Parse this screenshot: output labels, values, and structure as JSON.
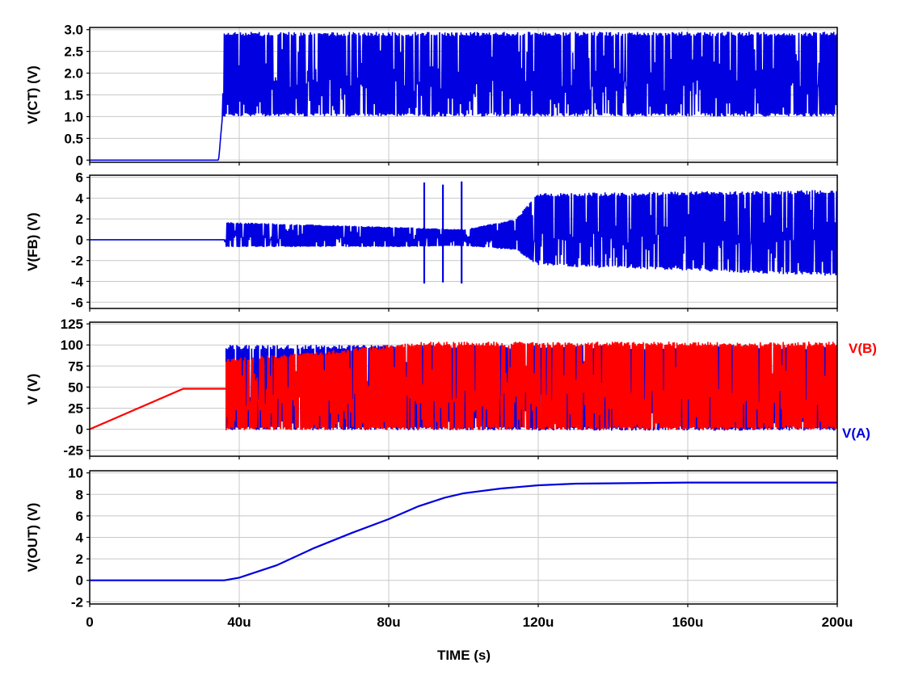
{
  "chart_data": {
    "type": "line",
    "xlabel": "TIME  (s)",
    "xlim": [
      0,
      200
    ],
    "x_tick_labels": [
      "0",
      "40u",
      "80u",
      "120u",
      "160u",
      "200u"
    ],
    "x_tick_values": [
      0,
      40,
      80,
      120,
      160,
      200
    ],
    "grid": true,
    "panels": [
      {
        "id": "ct",
        "ylabel": "V(CT)  (V)",
        "ylim": [
          -0.05,
          3.05
        ],
        "y_tick_labels": [
          "3.0",
          "2.5",
          "2.0",
          "1.5",
          "1.0",
          "0.5",
          "0"
        ],
        "y_tick_values": [
          3.0,
          2.5,
          2.0,
          1.5,
          1.0,
          0.5,
          0
        ],
        "series": [
          {
            "color": "#0000e0",
            "envelope": [
              {
                "x": 0,
                "low": 0,
                "high": 0
              },
              {
                "x": 34.5,
                "low": 0,
                "high": 0
              },
              {
                "x": 35.5,
                "low": 1.0,
                "high": 1.0
              },
              {
                "x": 36,
                "low": 1.0,
                "high": 2.95
              },
              {
                "x": 200,
                "low": 1.0,
                "high": 2.95
              }
            ]
          }
        ]
      },
      {
        "id": "fb",
        "ylabel": "V(FB)  (V)",
        "ylim": [
          -6.6,
          6.2
        ],
        "y_tick_labels": [
          "6",
          "4",
          "2",
          "0",
          "-2",
          "-4",
          "-6"
        ],
        "y_tick_values": [
          6,
          4,
          2,
          0,
          -2,
          -4,
          -6
        ],
        "series": [
          {
            "color": "#0000e0",
            "envelope": [
              {
                "x": 0,
                "low": 0,
                "high": 0
              },
              {
                "x": 36,
                "low": 0,
                "high": 0
              },
              {
                "x": 36.5,
                "low": -0.7,
                "high": 1.7
              },
              {
                "x": 85,
                "low": -0.7,
                "high": 1.2
              },
              {
                "x": 100,
                "low": -0.6,
                "high": 1.0
              },
              {
                "x": 114,
                "low": -1.0,
                "high": 2.0
              },
              {
                "x": 120,
                "low": -2.5,
                "high": 4.5
              },
              {
                "x": 200,
                "low": -3.5,
                "high": 4.8
              }
            ],
            "spikes": [
              {
                "x": 89.5,
                "low": -4.2,
                "high": 5.5
              },
              {
                "x": 94.5,
                "low": -4.1,
                "high": 5.3
              },
              {
                "x": 99.5,
                "low": -4.2,
                "high": 5.6
              }
            ]
          }
        ]
      },
      {
        "id": "ab",
        "ylabel": "V  (V)",
        "ylim": [
          -32,
          127
        ],
        "y_tick_labels": [
          "125",
          "100",
          "75",
          "50",
          "25",
          "0",
          "-25"
        ],
        "y_tick_values": [
          125,
          100,
          75,
          50,
          25,
          0,
          -25
        ],
        "series": [
          {
            "name": "V(A)",
            "color": "#0000e0",
            "envelope": [
              {
                "x": 36.5,
                "low": -1,
                "high": 100
              },
              {
                "x": 200,
                "low": -2,
                "high": 100
              }
            ]
          },
          {
            "name": "V(B)",
            "color": "#ff0000",
            "ramp": [
              {
                "x": 0,
                "y": 0
              },
              {
                "x": 25,
                "y": 48
              },
              {
                "x": 36.5,
                "y": 48
              }
            ],
            "envelope": [
              {
                "x": 36.5,
                "low": -1,
                "high": 84
              },
              {
                "x": 60,
                "low": -1,
                "high": 92
              },
              {
                "x": 88,
                "low": -1,
                "high": 104
              },
              {
                "x": 100,
                "low": -1,
                "high": 104
              },
              {
                "x": 200,
                "low": -1,
                "high": 104
              }
            ]
          }
        ]
      },
      {
        "id": "out",
        "ylabel": "V(OUT)  (V)",
        "ylim": [
          -2.2,
          10.2
        ],
        "y_tick_labels": [
          "10",
          "8",
          "6",
          "4",
          "2",
          "0",
          "-2"
        ],
        "y_tick_values": [
          10,
          8,
          6,
          4,
          2,
          0,
          -2
        ],
        "series": [
          {
            "color": "#0000e0",
            "points": [
              {
                "x": 0,
                "y": 0
              },
              {
                "x": 36,
                "y": 0
              },
              {
                "x": 40,
                "y": 0.25
              },
              {
                "x": 50,
                "y": 1.4
              },
              {
                "x": 60,
                "y": 3.0
              },
              {
                "x": 70,
                "y": 4.4
              },
              {
                "x": 80,
                "y": 5.7
              },
              {
                "x": 88,
                "y": 6.9
              },
              {
                "x": 95,
                "y": 7.7
              },
              {
                "x": 100,
                "y": 8.1
              },
              {
                "x": 110,
                "y": 8.55
              },
              {
                "x": 120,
                "y": 8.85
              },
              {
                "x": 130,
                "y": 9.0
              },
              {
                "x": 160,
                "y": 9.1
              },
              {
                "x": 200,
                "y": 9.1
              }
            ]
          }
        ]
      }
    ]
  }
}
